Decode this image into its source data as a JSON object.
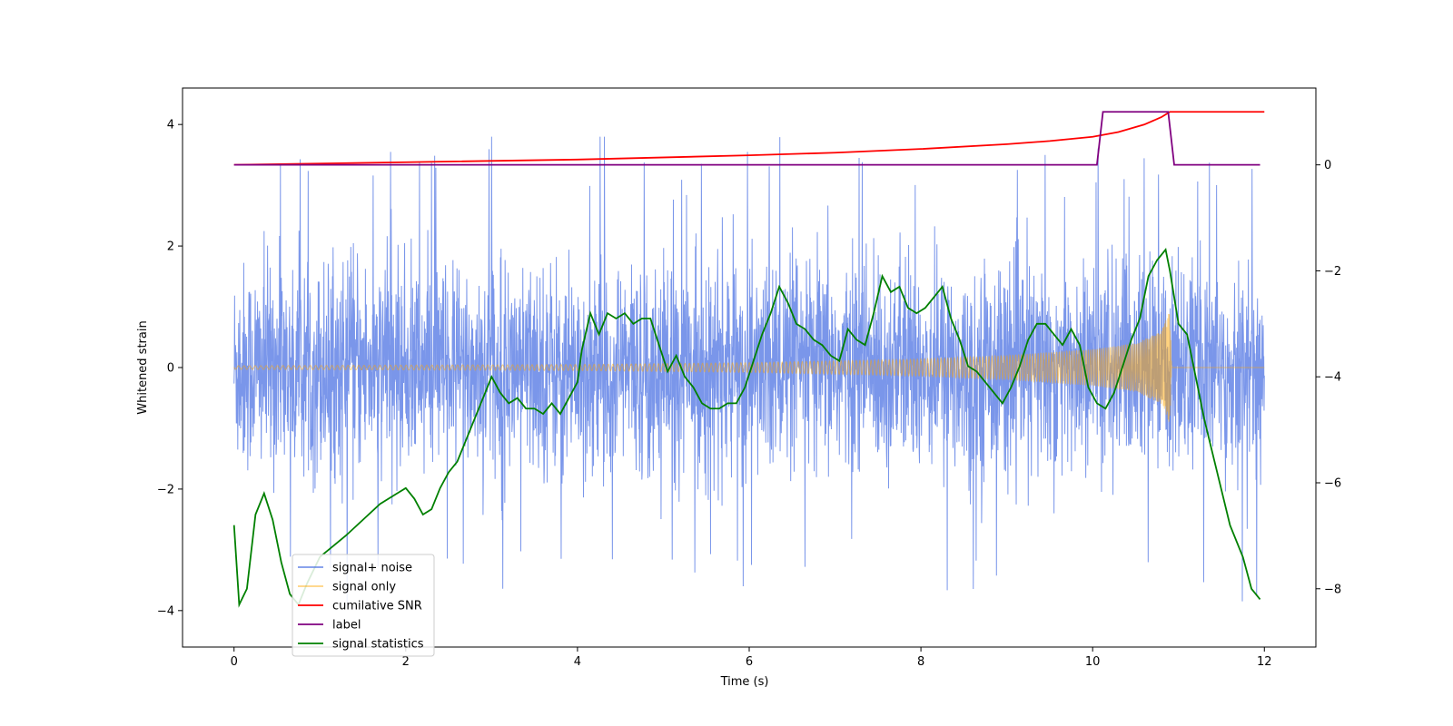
{
  "chart_data": {
    "type": "line",
    "xlabel": "Time (s)",
    "ylabel": "Whitened strain",
    "xlim": [
      -0.6,
      12.6
    ],
    "ylim_left": [
      -4.6,
      4.6
    ],
    "ylim_right": [
      -9.1,
      1.45
    ],
    "x_ticks": [
      0,
      2,
      4,
      6,
      8,
      10,
      12
    ],
    "y_ticks_left": [
      -4,
      -2,
      0,
      2,
      4
    ],
    "y_ticks_right": [
      -8,
      -6,
      -4,
      -2,
      0
    ],
    "grid": false,
    "legend_position": "lower-left",
    "series": [
      {
        "name": "signal+ noise",
        "axis": "left",
        "color": "#4169e1",
        "opacity": 0.7,
        "description": "Gaussian-like noise band, sigma about 0.85, spikes to about +3.7 and -4.2, over 0 to 12 s"
      },
      {
        "name": "signal only",
        "axis": "left",
        "color": "#ffa500",
        "opacity": 0.5,
        "envelope": {
          "x": [
            0,
            2,
            4,
            6,
            7,
            8,
            9,
            10,
            10.5,
            10.8,
            10.9,
            10.92,
            12
          ],
          "amp": [
            0.03,
            0.04,
            0.05,
            0.08,
            0.11,
            0.14,
            0.2,
            0.3,
            0.4,
            0.6,
            0.95,
            0,
            0
          ]
        }
      },
      {
        "name": "cumilative SNR",
        "axis": "right",
        "color": "#ff0000",
        "x": [
          0,
          2,
          4,
          6,
          7,
          8,
          9,
          9.5,
          10,
          10.3,
          10.6,
          10.8,
          10.9,
          10.95,
          12
        ],
        "y": [
          0,
          0.05,
          0.1,
          0.18,
          0.23,
          0.3,
          0.39,
          0.45,
          0.53,
          0.62,
          0.76,
          0.9,
          1.0,
          1.0,
          1.0
        ]
      },
      {
        "name": "label",
        "axis": "right",
        "color": "#800080",
        "x": [
          0,
          10.05,
          10.12,
          10.88,
          10.95,
          11.95
        ],
        "y": [
          0,
          0,
          1,
          1,
          0,
          0
        ]
      },
      {
        "name": "signal statistics",
        "axis": "right",
        "color": "#008000",
        "x": [
          0,
          0.06,
          0.15,
          0.25,
          0.35,
          0.45,
          0.55,
          0.65,
          0.75,
          0.85,
          1.0,
          1.15,
          1.3,
          1.5,
          1.7,
          1.9,
          2.0,
          2.1,
          2.2,
          2.3,
          2.4,
          2.5,
          2.6,
          2.7,
          2.8,
          2.9,
          3.0,
          3.1,
          3.2,
          3.3,
          3.4,
          3.5,
          3.6,
          3.7,
          3.8,
          3.9,
          4.0,
          4.05,
          4.15,
          4.25,
          4.35,
          4.45,
          4.55,
          4.65,
          4.75,
          4.85,
          4.95,
          5.05,
          5.15,
          5.25,
          5.35,
          5.45,
          5.55,
          5.65,
          5.75,
          5.85,
          5.95,
          6.05,
          6.15,
          6.25,
          6.35,
          6.45,
          6.55,
          6.65,
          6.75,
          6.85,
          6.95,
          7.05,
          7.15,
          7.25,
          7.35,
          7.45,
          7.55,
          7.65,
          7.75,
          7.85,
          7.95,
          8.05,
          8.15,
          8.25,
          8.35,
          8.45,
          8.55,
          8.65,
          8.75,
          8.85,
          8.95,
          9.05,
          9.15,
          9.25,
          9.35,
          9.45,
          9.55,
          9.65,
          9.75,
          9.85,
          9.95,
          10.05,
          10.15,
          10.25,
          10.35,
          10.45,
          10.55,
          10.65,
          10.75,
          10.85,
          10.9,
          11.0,
          11.1,
          11.2,
          11.3,
          11.45,
          11.6,
          11.75,
          11.85,
          11.95
        ],
        "y": [
          -6.8,
          -8.3,
          -8.0,
          -6.6,
          -6.2,
          -6.7,
          -7.5,
          -8.1,
          -8.3,
          -7.9,
          -7.4,
          -7.2,
          -7.0,
          -6.7,
          -6.4,
          -6.2,
          -6.1,
          -6.3,
          -6.6,
          -6.5,
          -6.1,
          -5.8,
          -5.6,
          -5.2,
          -4.8,
          -4.4,
          -4.0,
          -4.3,
          -4.5,
          -4.4,
          -4.6,
          -4.6,
          -4.7,
          -4.5,
          -4.7,
          -4.4,
          -4.1,
          -3.5,
          -2.8,
          -3.2,
          -2.8,
          -2.9,
          -2.8,
          -3.0,
          -2.9,
          -2.9,
          -3.4,
          -3.9,
          -3.6,
          -4.0,
          -4.2,
          -4.5,
          -4.6,
          -4.6,
          -4.5,
          -4.5,
          -4.2,
          -3.7,
          -3.2,
          -2.8,
          -2.3,
          -2.6,
          -3.0,
          -3.1,
          -3.3,
          -3.4,
          -3.6,
          -3.7,
          -3.1,
          -3.3,
          -3.4,
          -2.8,
          -2.1,
          -2.4,
          -2.3,
          -2.7,
          -2.8,
          -2.7,
          -2.5,
          -2.3,
          -2.9,
          -3.3,
          -3.8,
          -3.9,
          -4.1,
          -4.3,
          -4.5,
          -4.2,
          -3.8,
          -3.3,
          -3.0,
          -3.0,
          -3.2,
          -3.4,
          -3.1,
          -3.4,
          -4.2,
          -4.5,
          -4.6,
          -4.3,
          -3.8,
          -3.3,
          -2.9,
          -2.1,
          -1.8,
          -1.6,
          -2.0,
          -3.0,
          -3.2,
          -4.0,
          -4.8,
          -5.8,
          -6.8,
          -7.4,
          -8.0,
          -8.2
        ]
      }
    ]
  }
}
